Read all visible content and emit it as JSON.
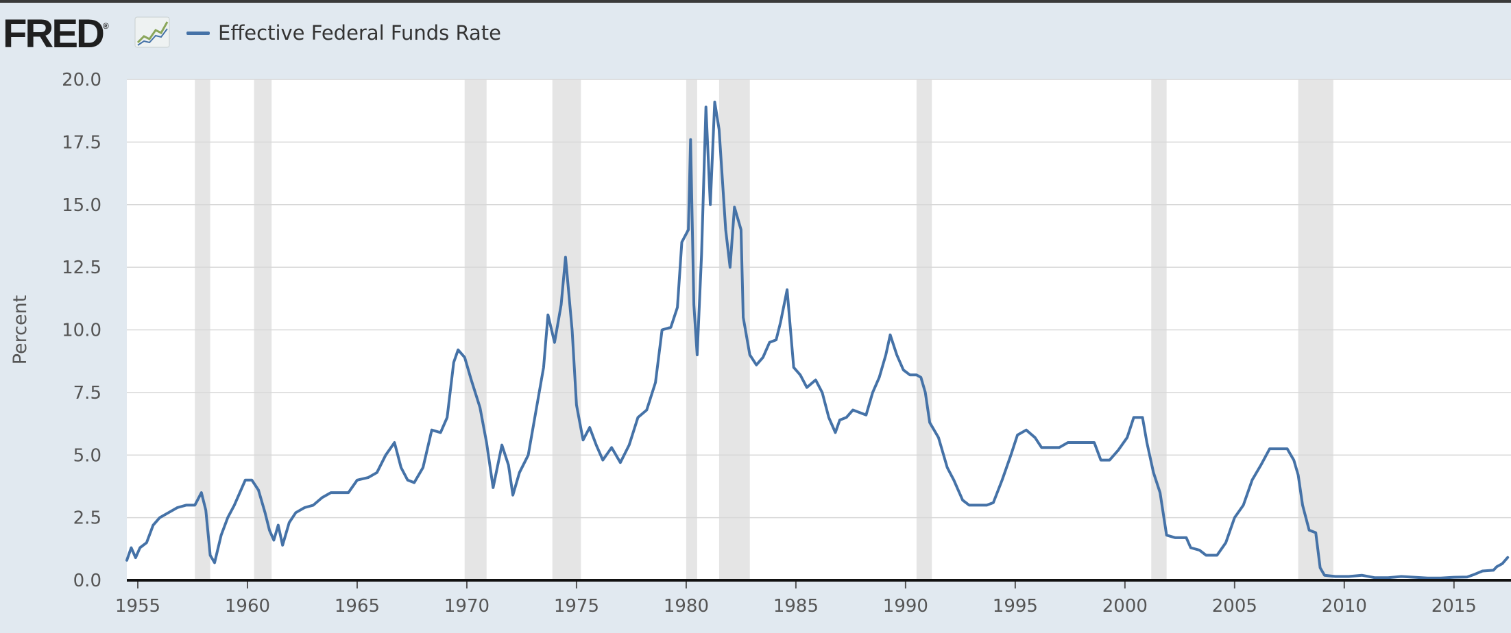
{
  "header": {
    "logo_text": "FRED",
    "logo_mark": "®",
    "graph_icon": "line-graph-icon",
    "legend_label": "Effective Federal Funds Rate"
  },
  "colors": {
    "series": "#4572a7",
    "recession": "#e5e5e5",
    "background": "#e1e9f0",
    "plot_bg": "#ffffff",
    "grid": "#d8d8d8"
  },
  "chart_data": {
    "type": "line",
    "title": "",
    "xlabel": "",
    "ylabel": "Percent",
    "xlim": [
      1954.5,
      2017.6
    ],
    "ylim": [
      0,
      20
    ],
    "x_ticks": [
      "1955",
      "1960",
      "1965",
      "1970",
      "1975",
      "1980",
      "1985",
      "1990",
      "1995",
      "2000",
      "2005",
      "2010",
      "2015"
    ],
    "y_ticks": [
      "0.0",
      "2.5",
      "5.0",
      "7.5",
      "10.0",
      "12.5",
      "15.0",
      "17.5",
      "20.0"
    ],
    "grid": true,
    "legend": "top-left",
    "recessions": [
      [
        1957.6,
        1958.3
      ],
      [
        1960.3,
        1961.1
      ],
      [
        1969.9,
        1970.9
      ],
      [
        1973.9,
        1975.2
      ],
      [
        1980.0,
        1980.5
      ],
      [
        1981.5,
        1982.9
      ],
      [
        1990.5,
        1991.2
      ],
      [
        2001.2,
        2001.9
      ],
      [
        2007.9,
        2009.5
      ]
    ],
    "series": [
      {
        "name": "Effective Federal Funds Rate",
        "points": [
          [
            1954.5,
            0.8
          ],
          [
            1954.7,
            1.3
          ],
          [
            1954.9,
            0.9
          ],
          [
            1955.1,
            1.3
          ],
          [
            1955.4,
            1.5
          ],
          [
            1955.7,
            2.2
          ],
          [
            1956.0,
            2.5
          ],
          [
            1956.4,
            2.7
          ],
          [
            1956.8,
            2.9
          ],
          [
            1957.2,
            3.0
          ],
          [
            1957.6,
            3.0
          ],
          [
            1957.9,
            3.5
          ],
          [
            1958.1,
            2.8
          ],
          [
            1958.3,
            1.0
          ],
          [
            1958.5,
            0.7
          ],
          [
            1958.8,
            1.8
          ],
          [
            1959.1,
            2.5
          ],
          [
            1959.4,
            3.0
          ],
          [
            1959.7,
            3.6
          ],
          [
            1959.9,
            4.0
          ],
          [
            1960.2,
            4.0
          ],
          [
            1960.5,
            3.6
          ],
          [
            1960.8,
            2.7
          ],
          [
            1961.0,
            2.0
          ],
          [
            1961.2,
            1.6
          ],
          [
            1961.4,
            2.2
          ],
          [
            1961.6,
            1.4
          ],
          [
            1961.9,
            2.3
          ],
          [
            1962.2,
            2.7
          ],
          [
            1962.6,
            2.9
          ],
          [
            1963.0,
            3.0
          ],
          [
            1963.4,
            3.3
          ],
          [
            1963.8,
            3.5
          ],
          [
            1964.2,
            3.5
          ],
          [
            1964.6,
            3.5
          ],
          [
            1965.0,
            4.0
          ],
          [
            1965.5,
            4.1
          ],
          [
            1965.9,
            4.3
          ],
          [
            1966.3,
            5.0
          ],
          [
            1966.7,
            5.5
          ],
          [
            1967.0,
            4.5
          ],
          [
            1967.3,
            4.0
          ],
          [
            1967.6,
            3.9
          ],
          [
            1968.0,
            4.5
          ],
          [
            1968.4,
            6.0
          ],
          [
            1968.8,
            5.9
          ],
          [
            1969.1,
            6.5
          ],
          [
            1969.4,
            8.7
          ],
          [
            1969.6,
            9.2
          ],
          [
            1969.9,
            8.9
          ],
          [
            1970.2,
            8.0
          ],
          [
            1970.6,
            6.9
          ],
          [
            1970.9,
            5.5
          ],
          [
            1971.2,
            3.7
          ],
          [
            1971.6,
            5.4
          ],
          [
            1971.9,
            4.6
          ],
          [
            1972.1,
            3.4
          ],
          [
            1972.4,
            4.3
          ],
          [
            1972.8,
            5.0
          ],
          [
            1973.1,
            6.5
          ],
          [
            1973.5,
            8.5
          ],
          [
            1973.7,
            10.6
          ],
          [
            1974.0,
            9.5
          ],
          [
            1974.3,
            11.0
          ],
          [
            1974.5,
            12.9
          ],
          [
            1974.8,
            10.0
          ],
          [
            1975.0,
            7.0
          ],
          [
            1975.3,
            5.6
          ],
          [
            1975.6,
            6.1
          ],
          [
            1975.9,
            5.4
          ],
          [
            1976.2,
            4.8
          ],
          [
            1976.6,
            5.3
          ],
          [
            1977.0,
            4.7
          ],
          [
            1977.4,
            5.4
          ],
          [
            1977.8,
            6.5
          ],
          [
            1978.2,
            6.8
          ],
          [
            1978.6,
            7.9
          ],
          [
            1978.9,
            10.0
          ],
          [
            1979.3,
            10.1
          ],
          [
            1979.6,
            10.9
          ],
          [
            1979.8,
            13.5
          ],
          [
            1980.1,
            14.0
          ],
          [
            1980.2,
            17.6
          ],
          [
            1980.35,
            11.0
          ],
          [
            1980.5,
            9.0
          ],
          [
            1980.7,
            13.0
          ],
          [
            1980.9,
            18.9
          ],
          [
            1981.1,
            15.0
          ],
          [
            1981.3,
            19.1
          ],
          [
            1981.5,
            18.0
          ],
          [
            1981.8,
            14.0
          ],
          [
            1982.0,
            12.5
          ],
          [
            1982.2,
            14.9
          ],
          [
            1982.5,
            14.0
          ],
          [
            1982.6,
            10.5
          ],
          [
            1982.9,
            9.0
          ],
          [
            1983.2,
            8.6
          ],
          [
            1983.5,
            8.9
          ],
          [
            1983.8,
            9.5
          ],
          [
            1984.1,
            9.6
          ],
          [
            1984.3,
            10.3
          ],
          [
            1984.6,
            11.6
          ],
          [
            1984.9,
            8.5
          ],
          [
            1985.2,
            8.2
          ],
          [
            1985.5,
            7.7
          ],
          [
            1985.9,
            8.0
          ],
          [
            1986.2,
            7.5
          ],
          [
            1986.5,
            6.5
          ],
          [
            1986.8,
            5.9
          ],
          [
            1987.0,
            6.4
          ],
          [
            1987.3,
            6.5
          ],
          [
            1987.6,
            6.8
          ],
          [
            1987.9,
            6.7
          ],
          [
            1988.2,
            6.6
          ],
          [
            1988.5,
            7.5
          ],
          [
            1988.8,
            8.1
          ],
          [
            1989.1,
            9.0
          ],
          [
            1989.3,
            9.8
          ],
          [
            1989.6,
            9.0
          ],
          [
            1989.9,
            8.4
          ],
          [
            1990.2,
            8.2
          ],
          [
            1990.5,
            8.2
          ],
          [
            1990.7,
            8.1
          ],
          [
            1990.9,
            7.5
          ],
          [
            1991.1,
            6.3
          ],
          [
            1991.5,
            5.7
          ],
          [
            1991.9,
            4.5
          ],
          [
            1992.2,
            4.0
          ],
          [
            1992.6,
            3.2
          ],
          [
            1992.9,
            3.0
          ],
          [
            1993.3,
            3.0
          ],
          [
            1993.7,
            3.0
          ],
          [
            1994.0,
            3.1
          ],
          [
            1994.4,
            4.0
          ],
          [
            1994.8,
            5.0
          ],
          [
            1995.1,
            5.8
          ],
          [
            1995.5,
            6.0
          ],
          [
            1995.9,
            5.7
          ],
          [
            1996.2,
            5.3
          ],
          [
            1996.6,
            5.3
          ],
          [
            1997.0,
            5.3
          ],
          [
            1997.4,
            5.5
          ],
          [
            1997.8,
            5.5
          ],
          [
            1998.2,
            5.5
          ],
          [
            1998.6,
            5.5
          ],
          [
            1998.9,
            4.8
          ],
          [
            1999.3,
            4.8
          ],
          [
            1999.7,
            5.2
          ],
          [
            2000.1,
            5.7
          ],
          [
            2000.4,
            6.5
          ],
          [
            2000.8,
            6.5
          ],
          [
            2001.0,
            5.5
          ],
          [
            2001.3,
            4.3
          ],
          [
            2001.6,
            3.5
          ],
          [
            2001.9,
            1.8
          ],
          [
            2002.3,
            1.7
          ],
          [
            2002.8,
            1.7
          ],
          [
            2003.0,
            1.3
          ],
          [
            2003.4,
            1.2
          ],
          [
            2003.7,
            1.0
          ],
          [
            2004.2,
            1.0
          ],
          [
            2004.6,
            1.5
          ],
          [
            2005.0,
            2.5
          ],
          [
            2005.4,
            3.0
          ],
          [
            2005.8,
            4.0
          ],
          [
            2006.2,
            4.6
          ],
          [
            2006.6,
            5.25
          ],
          [
            2007.0,
            5.25
          ],
          [
            2007.4,
            5.25
          ],
          [
            2007.7,
            4.8
          ],
          [
            2007.9,
            4.2
          ],
          [
            2008.1,
            3.0
          ],
          [
            2008.4,
            2.0
          ],
          [
            2008.7,
            1.9
          ],
          [
            2008.9,
            0.5
          ],
          [
            2009.1,
            0.2
          ],
          [
            2009.6,
            0.15
          ],
          [
            2010.2,
            0.15
          ],
          [
            2010.8,
            0.2
          ],
          [
            2011.4,
            0.1
          ],
          [
            2012.0,
            0.1
          ],
          [
            2012.6,
            0.15
          ],
          [
            2013.2,
            0.12
          ],
          [
            2013.8,
            0.09
          ],
          [
            2014.4,
            0.09
          ],
          [
            2015.0,
            0.12
          ],
          [
            2015.6,
            0.13
          ],
          [
            2015.95,
            0.24
          ],
          [
            2016.3,
            0.37
          ],
          [
            2016.8,
            0.4
          ],
          [
            2016.95,
            0.54
          ],
          [
            2017.2,
            0.66
          ],
          [
            2017.45,
            0.91
          ]
        ]
      }
    ]
  }
}
